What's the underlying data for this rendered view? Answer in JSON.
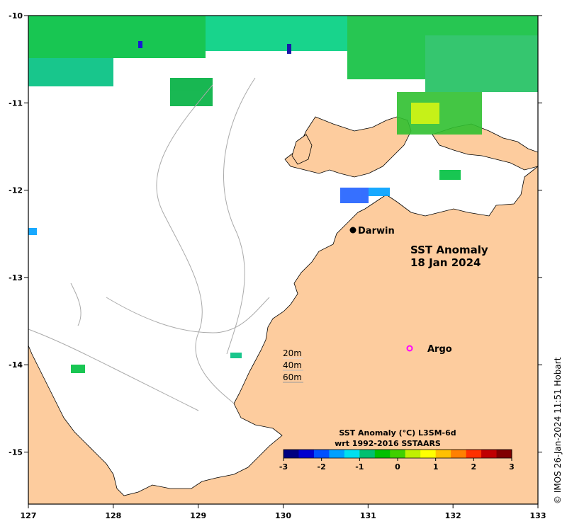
{
  "map": {
    "title_line1": "SST Anomaly",
    "title_line2": "18 Jan 2024",
    "lon_ticks": [
      "127",
      "128",
      "129",
      "130",
      "131",
      "132",
      "133"
    ],
    "lat_ticks": [
      "-10",
      "-11",
      "-12",
      "-13",
      "-14",
      "-15"
    ],
    "places": {
      "darwin": "Darwin",
      "argo": "Argo"
    },
    "depth_legend": [
      "20m",
      "40m",
      "60m"
    ],
    "colorbar": {
      "title_line1": "SST Anomaly (°C) L3SM-6d",
      "title_line2": "wrt 1992-2016 SSTAARS",
      "ticks": [
        "-3",
        "-2",
        "-1",
        "0",
        "1",
        "2",
        "3"
      ],
      "colors": [
        "#000080",
        "#0000d0",
        "#0050ff",
        "#00a0ff",
        "#00e0f0",
        "#00c070",
        "#00c000",
        "#40d000",
        "#c0f000",
        "#ffff00",
        "#ffc000",
        "#ff8000",
        "#ff3000",
        "#c00000",
        "#800000"
      ]
    },
    "credit": "© IMOS 26-Jan-2024 11:51 Hobart",
    "colors": {
      "land": "#fdcc9e",
      "ocean": "#ffffff",
      "argo_marker": "#ff00ff"
    }
  }
}
